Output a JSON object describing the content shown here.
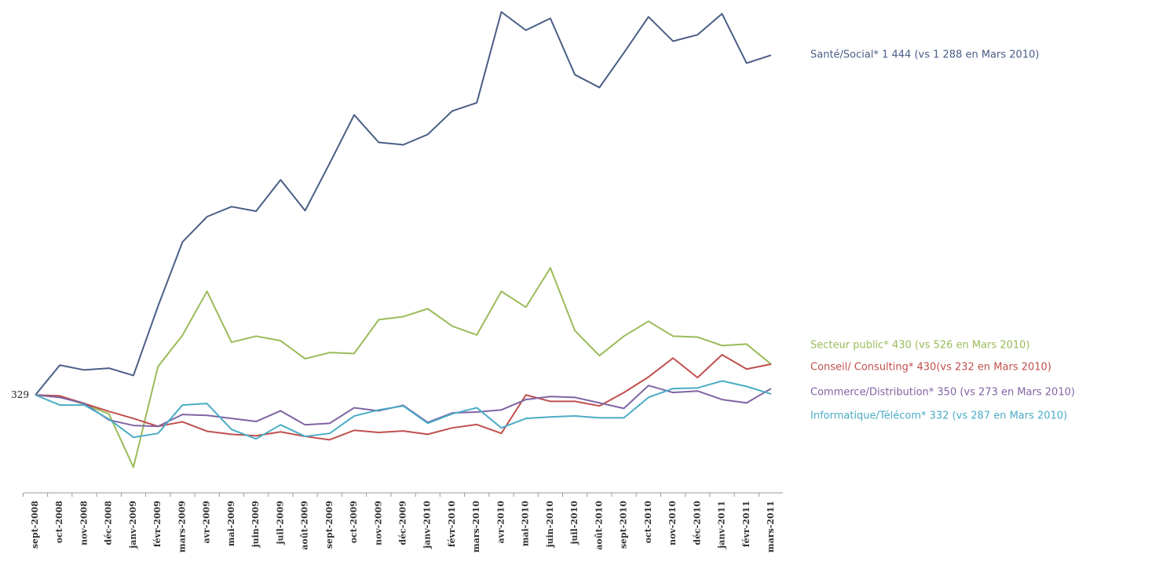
{
  "chart_data": {
    "type": "line",
    "categories": [
      "sept-2008",
      "oct-2008",
      "nov-2008",
      "déc-2008",
      "janv-2009",
      "févr-2009",
      "mars-2009",
      "avr-2009",
      "mai-2009",
      "juin-2009",
      "juil-2009",
      "août-2009",
      "sept-2009",
      "oct-2009",
      "nov-2009",
      "déc-2009",
      "janv-2010",
      "févr-2010",
      "mars-2010",
      "avr-2010",
      "mai-2010",
      "juin-2010",
      "juil-2010",
      "août-2010",
      "sept-2010",
      "oct-2010",
      "nov-2010",
      "déc-2010",
      "janv-2011",
      "févr-2011",
      "mars-2011"
    ],
    "series": [
      {
        "name": "Santé/Social* 1 444 (vs 1 288 en Mars 2010)",
        "color": "#4a5e86",
        "values": [
          329,
          427,
          411,
          417,
          393,
          620,
          831,
          914,
          947,
          932,
          1035,
          934,
          1089,
          1248,
          1158,
          1150,
          1184,
          1261,
          1288,
          1586,
          1526,
          1565,
          1380,
          1338,
          1452,
          1570,
          1490,
          1511,
          1580,
          1418,
          1444
        ]
      },
      {
        "name": "Secteur public* 430 (vs 526 en Mars 2010)",
        "color": "#9bbb59",
        "values": [
          329,
          324,
          298,
          267,
          92,
          422,
          525,
          669,
          502,
          522,
          507,
          448,
          468,
          465,
          576,
          586,
          612,
          555,
          526,
          669,
          617,
          746,
          540,
          458,
          522,
          571,
          522,
          519,
          491,
          496,
          430
        ]
      },
      {
        "name": "Conseil/ Consulting* 430(vs 232 en Mars 2010)",
        "color": "#c0504d",
        "values": [
          329,
          326,
          301,
          275,
          252,
          226,
          241,
          210,
          200,
          195,
          208,
          193,
          182,
          213,
          206,
          211,
          200,
          221,
          232,
          203,
          329,
          308,
          308,
          293,
          337,
          388,
          450,
          386,
          461,
          414,
          430
        ]
      },
      {
        "name": "Commerce/Distribution* 350 (vs 273 en Mars 2010)",
        "color": "#8064a2",
        "values": [
          329,
          321,
          301,
          247,
          229,
          226,
          265,
          262,
          252,
          242,
          277,
          231,
          236,
          287,
          277,
          295,
          239,
          270,
          273,
          280,
          314,
          324,
          321,
          303,
          285,
          360,
          337,
          342,
          314,
          303,
          350
        ]
      },
      {
        "name": "Informatique/Télécom* 332 (vs 287 en Mars 2010)",
        "color": "#4bacc6",
        "values": [
          329,
          296,
          296,
          250,
          190,
          203,
          296,
          301,
          216,
          185,
          231,
          193,
          203,
          260,
          280,
          293,
          236,
          267,
          287,
          221,
          252,
          257,
          260,
          254,
          254,
          321,
          350,
          352,
          375,
          357,
          332
        ]
      }
    ],
    "ylim": [
      0,
      1620
    ],
    "yticks": [
      329
    ],
    "grid": false
  }
}
